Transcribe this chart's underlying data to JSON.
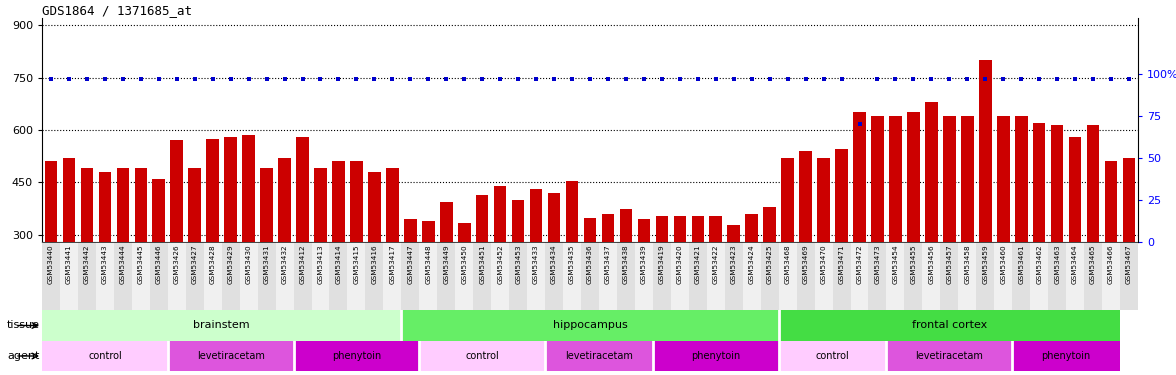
{
  "title": "GDS1864 / 1371685_at",
  "samples": [
    "GSM53440",
    "GSM53441",
    "GSM53442",
    "GSM53443",
    "GSM53444",
    "GSM53445",
    "GSM53446",
    "GSM53426",
    "GSM53427",
    "GSM53428",
    "GSM53429",
    "GSM53430",
    "GSM53431",
    "GSM53432",
    "GSM53412",
    "GSM53413",
    "GSM53414",
    "GSM53415",
    "GSM53416",
    "GSM53417",
    "GSM53447",
    "GSM53448",
    "GSM53449",
    "GSM53450",
    "GSM53451",
    "GSM53452",
    "GSM53453",
    "GSM53433",
    "GSM53434",
    "GSM53435",
    "GSM53436",
    "GSM53437",
    "GSM53438",
    "GSM53439",
    "GSM53419",
    "GSM53420",
    "GSM53421",
    "GSM53422",
    "GSM53423",
    "GSM53424",
    "GSM53425",
    "GSM53468",
    "GSM53469",
    "GSM53470",
    "GSM53471",
    "GSM53472",
    "GSM53473",
    "GSM53454",
    "GSM53455",
    "GSM53456",
    "GSM53457",
    "GSM53458",
    "GSM53459",
    "GSM53460",
    "GSM53461",
    "GSM53462",
    "GSM53463",
    "GSM53464",
    "GSM53465",
    "GSM53466",
    "GSM53467"
  ],
  "bar_values": [
    510,
    520,
    490,
    480,
    490,
    490,
    460,
    570,
    490,
    575,
    580,
    585,
    490,
    520,
    580,
    490,
    510,
    510,
    480,
    490,
    345,
    340,
    395,
    335,
    415,
    440,
    400,
    430,
    420,
    455,
    350,
    360,
    375,
    345,
    355,
    355,
    355,
    355,
    330,
    360,
    380,
    520,
    540,
    520,
    545,
    650,
    640,
    640,
    650,
    680,
    640,
    640,
    800,
    640,
    640,
    620,
    615,
    580,
    615,
    510,
    520
  ],
  "percentile_values": [
    97,
    97,
    97,
    97,
    97,
    97,
    97,
    97,
    97,
    97,
    97,
    97,
    97,
    97,
    97,
    97,
    97,
    97,
    97,
    97,
    97,
    97,
    97,
    97,
    97,
    97,
    97,
    97,
    97,
    97,
    97,
    97,
    97,
    97,
    97,
    97,
    97,
    97,
    97,
    97,
    97,
    97,
    97,
    97,
    97,
    70,
    97,
    97,
    97,
    97,
    97,
    97,
    97,
    97,
    97,
    97,
    97,
    97,
    97,
    97,
    97
  ],
  "bar_color": "#cc0000",
  "dot_color": "#0000cc",
  "left_ylim": [
    280,
    920
  ],
  "left_yticks": [
    300,
    450,
    600,
    750,
    900
  ],
  "right_ylim": [
    0,
    133.33
  ],
  "right_yticks": [
    0,
    25,
    50,
    75,
    100
  ],
  "right_yticklabels": [
    "0",
    "25",
    "50",
    "75",
    "100%"
  ],
  "hlines": [
    300,
    450,
    600,
    750,
    900
  ],
  "tissue_groups": [
    {
      "label": "brainstem",
      "start": 0,
      "end": 20,
      "color": "#ccffcc"
    },
    {
      "label": "hippocampus",
      "start": 20,
      "end": 41,
      "color": "#66ee66"
    },
    {
      "label": "frontal cortex",
      "start": 41,
      "end": 60,
      "color": "#44dd44"
    }
  ],
  "agent_groups": [
    {
      "label": "control",
      "start": 0,
      "end": 7,
      "color": "#ffccff"
    },
    {
      "label": "levetiracetam",
      "start": 7,
      "end": 14,
      "color": "#dd55dd"
    },
    {
      "label": "phenytoin",
      "start": 14,
      "end": 21,
      "color": "#cc00cc"
    },
    {
      "label": "control",
      "start": 21,
      "end": 28,
      "color": "#ffccff"
    },
    {
      "label": "levetiracetam",
      "start": 28,
      "end": 34,
      "color": "#dd55dd"
    },
    {
      "label": "phenytoin",
      "start": 34,
      "end": 41,
      "color": "#cc00cc"
    },
    {
      "label": "control",
      "start": 41,
      "end": 47,
      "color": "#ffccff"
    },
    {
      "label": "levetiracetam",
      "start": 47,
      "end": 54,
      "color": "#dd55dd"
    },
    {
      "label": "phenytoin",
      "start": 54,
      "end": 60,
      "color": "#cc00cc"
    }
  ],
  "background_color": "#ffffff"
}
